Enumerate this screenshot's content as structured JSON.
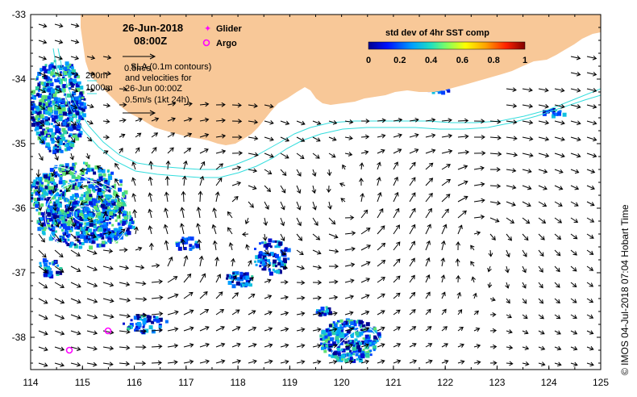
{
  "map": {
    "date": "26-Jun-2018",
    "time": "08:00Z",
    "x_ticks": [
      "114",
      "115",
      "116",
      "117",
      "118",
      "119",
      "120",
      "121",
      "122",
      "123",
      "124",
      "125"
    ],
    "y_ticks": [
      "-33",
      "-34",
      "-35",
      "-36",
      "-37",
      "-38"
    ],
    "lon_range": [
      114,
      125
    ],
    "lat_range": [
      -33,
      -38.5
    ],
    "legend": {
      "glider": "Glider",
      "argo": "Argo",
      "scale_arrow_1": "0.5m/s",
      "sla_text": "SLA (0.1m contours)",
      "vel_text_1": "and velocities for",
      "vel_text_2": "26-Jun 00:00Z",
      "scale_arrow_2": "0.5m/s (1kt 24h)",
      "isobath_200": "200m",
      "isobath_1000": "1000m"
    },
    "colorbar": {
      "title": "std dev of 4hr SST comp",
      "ticks": [
        "0",
        "0.2",
        "0.4",
        "0.6",
        "0.8",
        "1"
      ]
    },
    "credit": "© IMOS 04-Jul-2018 07:04 Hobart Time",
    "colors": {
      "land": "#f8c898",
      "isobath": "#33dddd",
      "marker": "#ff00ff"
    }
  }
}
